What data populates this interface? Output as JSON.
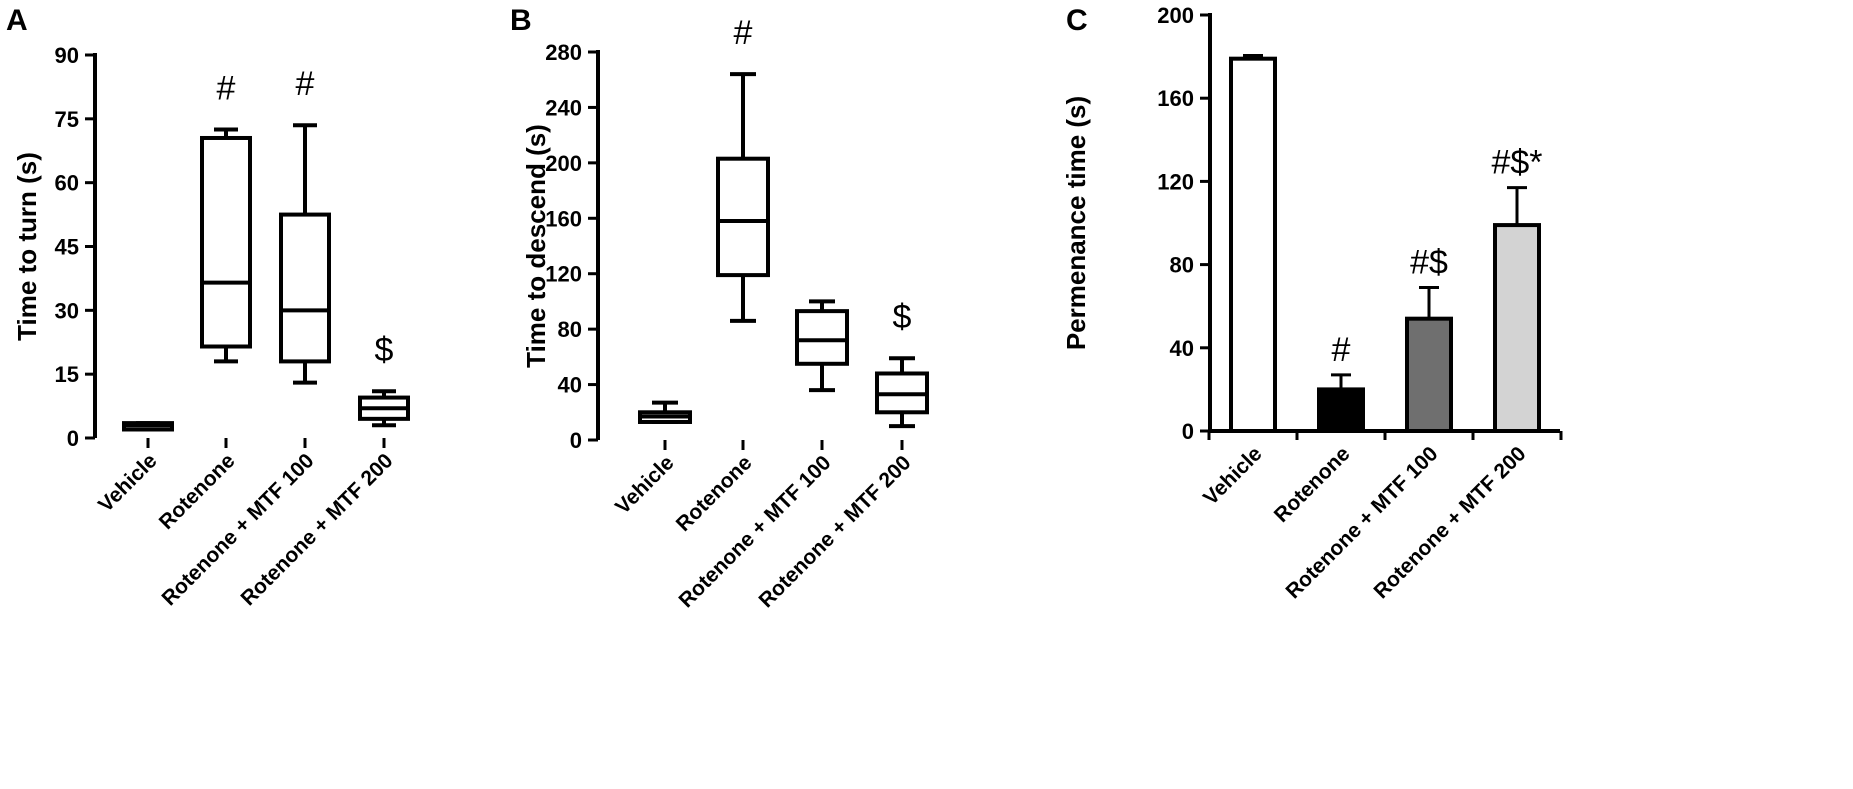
{
  "chart_data": [
    {
      "panel": "A",
      "type": "box",
      "ylabel": "Time to turn (s)",
      "ylim": [
        0,
        90
      ],
      "yticks": [
        0,
        15,
        30,
        45,
        60,
        75,
        90
      ],
      "categories": [
        "Vehicle",
        "Rotenone",
        "Rotenone + MTF 100",
        "Rotenone + MTF 200"
      ],
      "boxes": [
        {
          "min": 2,
          "q1": 2,
          "median": 3,
          "q3": 3.5,
          "max": 3.5
        },
        {
          "min": 18,
          "q1": 21.5,
          "median": 36.5,
          "q3": 70.5,
          "max": 72.5
        },
        {
          "min": 13,
          "q1": 18,
          "median": 30,
          "q3": 52.5,
          "max": 73.5
        },
        {
          "min": 3,
          "q1": 4.5,
          "median": 7,
          "q3": 9.5,
          "max": 11
        }
      ],
      "annotations": [
        "",
        "#",
        "#",
        "$"
      ]
    },
    {
      "panel": "B",
      "type": "box",
      "ylabel": "Time to descend (s)",
      "ylim": [
        0,
        280
      ],
      "yticks": [
        0,
        40,
        80,
        120,
        160,
        200,
        240,
        280
      ],
      "categories": [
        "Vehicle",
        "Rotenone",
        "Rotenone + MTF 100",
        "Rotenone + MTF 200"
      ],
      "boxes": [
        {
          "min": 13,
          "q1": 13,
          "median": 17,
          "q3": 20,
          "max": 27
        },
        {
          "min": 86,
          "q1": 119,
          "median": 158,
          "q3": 203,
          "max": 264
        },
        {
          "min": 36,
          "q1": 55,
          "median": 72,
          "q3": 93,
          "max": 100
        },
        {
          "min": 10,
          "q1": 20,
          "median": 33,
          "q3": 48,
          "max": 59
        }
      ],
      "annotations": [
        "",
        "#",
        "",
        "$"
      ]
    },
    {
      "panel": "C",
      "type": "bar",
      "ylabel": "Permenance time (s)",
      "ylim": [
        0,
        200
      ],
      "yticks": [
        0,
        40,
        80,
        120,
        160,
        200
      ],
      "categories": [
        "Vehicle",
        "Rotenone",
        "Rotenone + MTF 100",
        "Rotenone + MTF 200"
      ],
      "values": [
        179,
        20,
        54,
        99
      ],
      "errors": [
        1.5,
        7,
        15,
        18
      ],
      "bar_colors": [
        "#ffffff",
        "#000000",
        "#6f6f6f",
        "#d3d3d3"
      ],
      "annotations": [
        "",
        "#",
        "#$",
        "#$*"
      ]
    }
  ]
}
